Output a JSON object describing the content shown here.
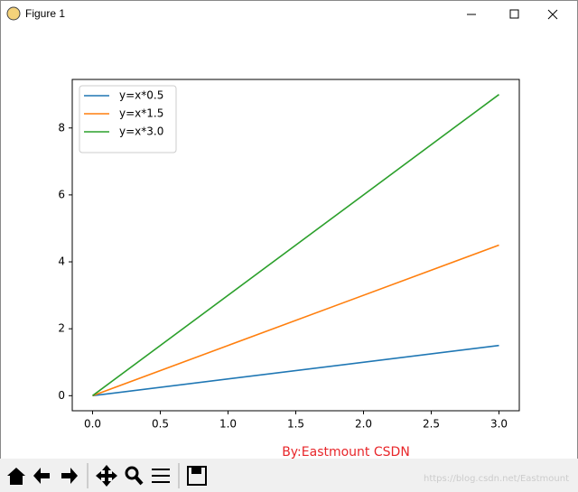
{
  "window": {
    "title": "Figure 1",
    "watermark": "https://blog.csdn.net/Eastmount"
  },
  "chart_data": {
    "type": "line",
    "x": [
      0,
      3
    ],
    "series": [
      {
        "name": "y=x*0.5",
        "color": "#1f77b4",
        "values": [
          0,
          1.5
        ]
      },
      {
        "name": "y=x*1.5",
        "color": "#ff7f0e",
        "values": [
          0,
          4.5
        ]
      },
      {
        "name": "y=x*3.0",
        "color": "#2ca02c",
        "values": [
          0,
          9
        ]
      }
    ],
    "xlim": [
      -0.15,
      3.15
    ],
    "ylim": [
      -0.45,
      9.45
    ],
    "xticks": [
      {
        "value": 0,
        "label": "0.0"
      },
      {
        "value": 0.5,
        "label": "0.5"
      },
      {
        "value": 1,
        "label": "1.0"
      },
      {
        "value": 1.5,
        "label": "1.5"
      },
      {
        "value": 2,
        "label": "2.0"
      },
      {
        "value": 2.5,
        "label": "2.5"
      },
      {
        "value": 3,
        "label": "3.0"
      }
    ],
    "yticks": [
      0,
      2,
      4,
      6,
      8
    ],
    "legend": "upper left",
    "annotation": {
      "text": "By:Eastmount CSDN",
      "color": "#e8262a"
    }
  }
}
